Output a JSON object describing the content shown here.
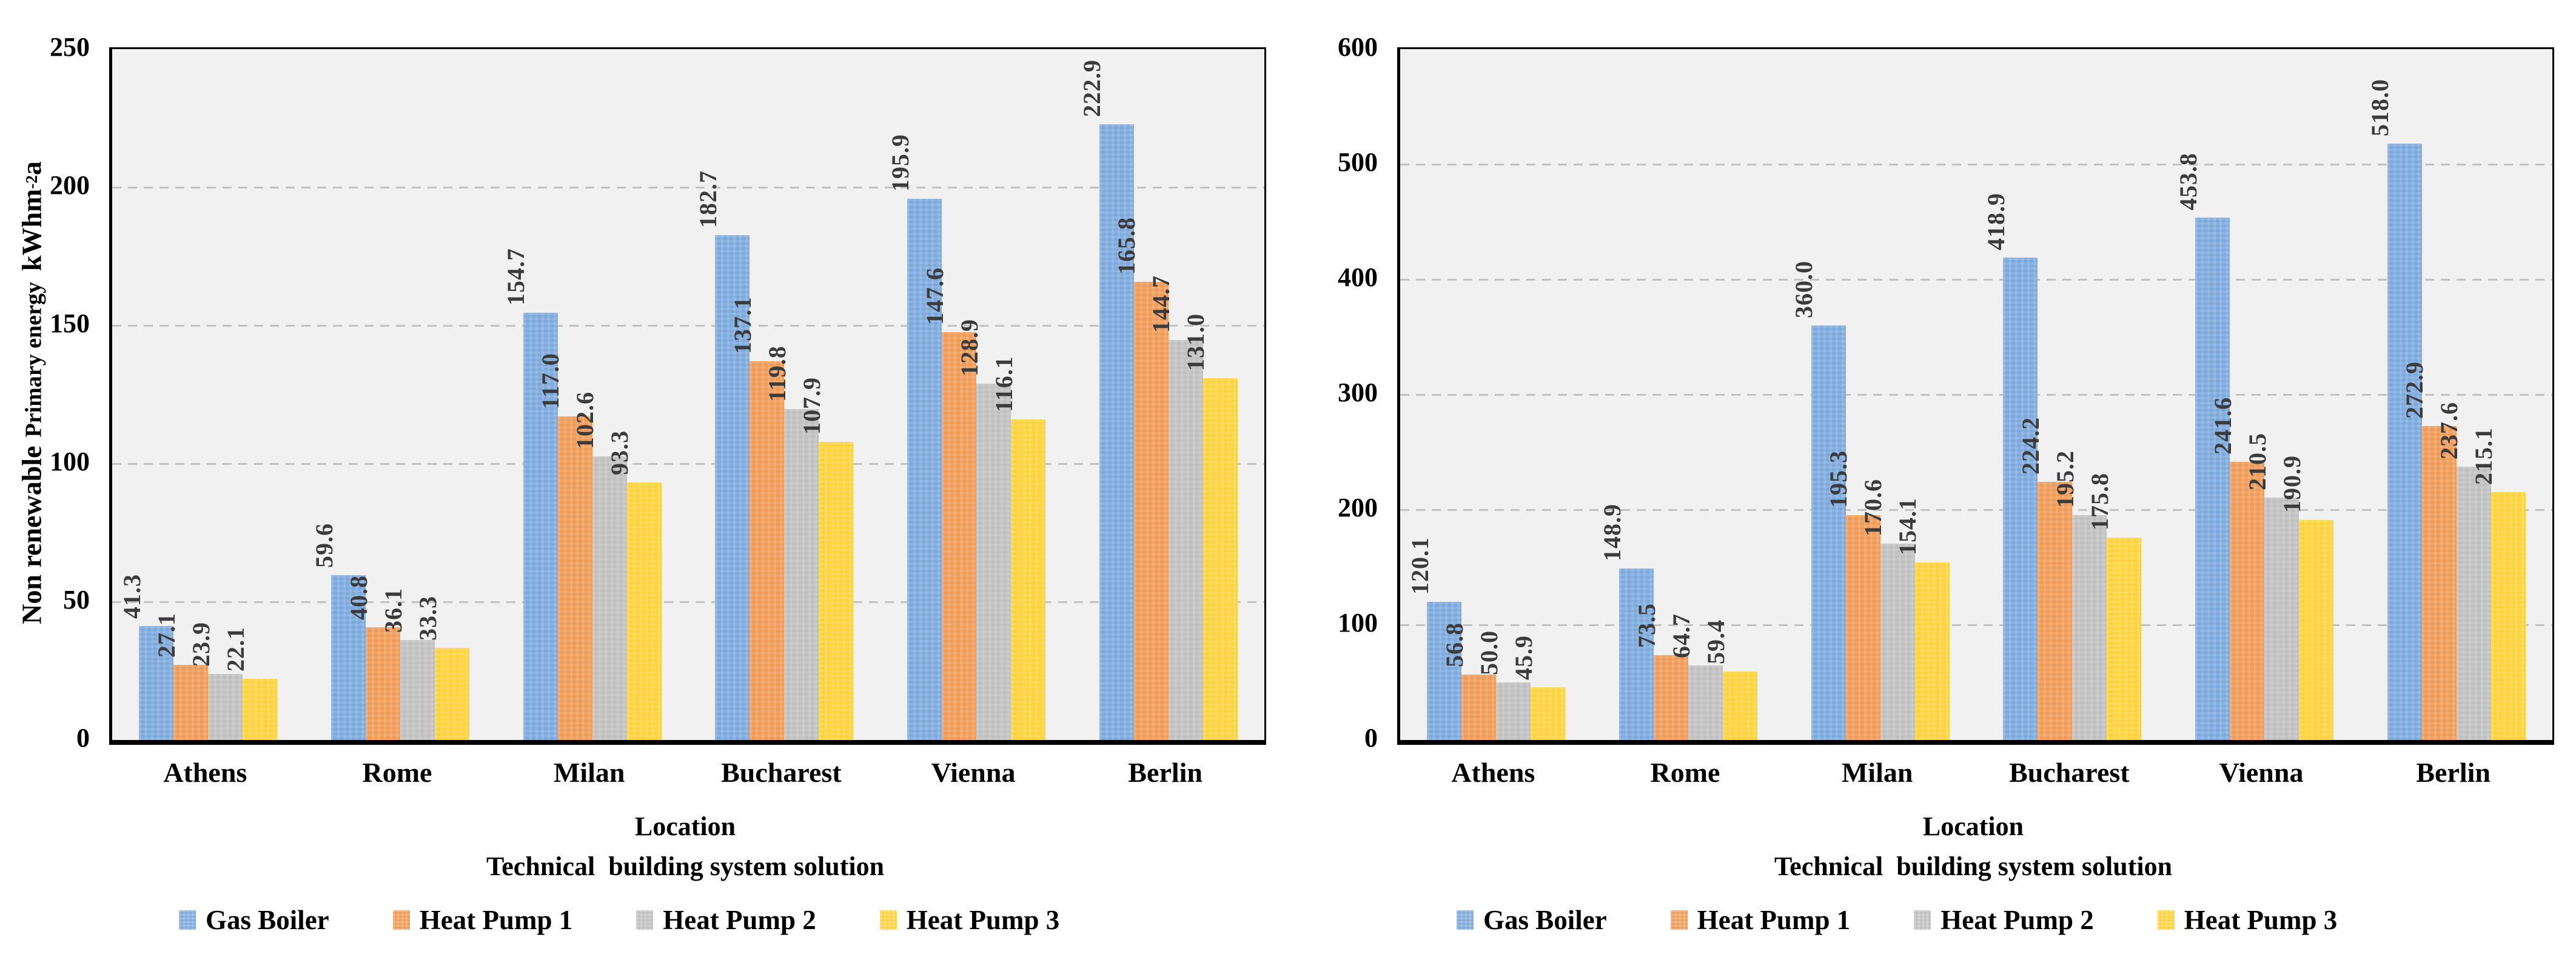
{
  "figure_title": "",
  "chart_data": [
    {
      "type": "bar",
      "title": "",
      "ylabel": "Non renewable Primary energy kWhm⁻²a",
      "ylabel_parts": {
        "a": "Non renewable",
        "b": "Primary energy",
        "c": "kWhm",
        "sup": "-2",
        "d": "a"
      },
      "xlabel_line1": "Location",
      "xlabel_line2": "Technical  building system solution",
      "categories": [
        "Athens",
        "Rome",
        "Milan",
        "Bucharest",
        "Vienna",
        "Berlin"
      ],
      "series": [
        {
          "name": "Gas Boiler",
          "color": "#7CA9DC",
          "values": [
            41.3,
            59.6,
            154.7,
            182.7,
            195.9,
            222.9
          ]
        },
        {
          "name": "Heat Pump 1",
          "color": "#EF9A55",
          "values": [
            27.1,
            40.8,
            117.0,
            137.1,
            147.6,
            165.8
          ]
        },
        {
          "name": "Heat Pump 2",
          "color": "#BFBFBF",
          "values": [
            23.9,
            36.1,
            102.6,
            119.8,
            128.9,
            144.7
          ]
        },
        {
          "name": "Heat Pump 3",
          "color": "#FDD23A",
          "values": [
            22.1,
            33.3,
            93.3,
            107.9,
            116.1,
            131.0
          ]
        }
      ],
      "ylim": [
        0,
        250
      ],
      "yticks": [
        0,
        50,
        100,
        150,
        200,
        250
      ],
      "value_label_decimals": 1,
      "grid": "horizontal-dashed",
      "legend_position": "bottom",
      "plot_background": "#F1F1F1",
      "gridline_color": "#C2C2C2",
      "value_label_color": "#3B3B3B"
    },
    {
      "type": "bar",
      "title": "",
      "ylabel": "",
      "xlabel_line1": "Location",
      "xlabel_line2": "Technical  building system solution",
      "categories": [
        "Athens",
        "Rome",
        "Milan",
        "Bucharest",
        "Vienna",
        "Berlin"
      ],
      "series": [
        {
          "name": "Gas Boiler",
          "color": "#7CA9DC",
          "values": [
            120.1,
            148.9,
            360.0,
            418.9,
            453.8,
            518.0
          ]
        },
        {
          "name": "Heat Pump 1",
          "color": "#EF9A55",
          "values": [
            56.8,
            73.5,
            195.3,
            224.2,
            241.6,
            272.9
          ]
        },
        {
          "name": "Heat Pump 2",
          "color": "#BFBFBF",
          "values": [
            50.0,
            64.7,
            170.6,
            195.2,
            210.5,
            237.6
          ]
        },
        {
          "name": "Heat Pump 3",
          "color": "#FDD23A",
          "values": [
            45.9,
            59.4,
            154.1,
            175.8,
            190.9,
            215.1
          ]
        }
      ],
      "ylim": [
        0,
        600
      ],
      "yticks": [
        0,
        100,
        200,
        300,
        400,
        500,
        600
      ],
      "value_label_decimals": 1,
      "grid": "horizontal-dashed",
      "legend_position": "bottom",
      "plot_background": "#F1F1F1",
      "gridline_color": "#C2C2C2",
      "value_label_color": "#3B3B3B"
    }
  ]
}
